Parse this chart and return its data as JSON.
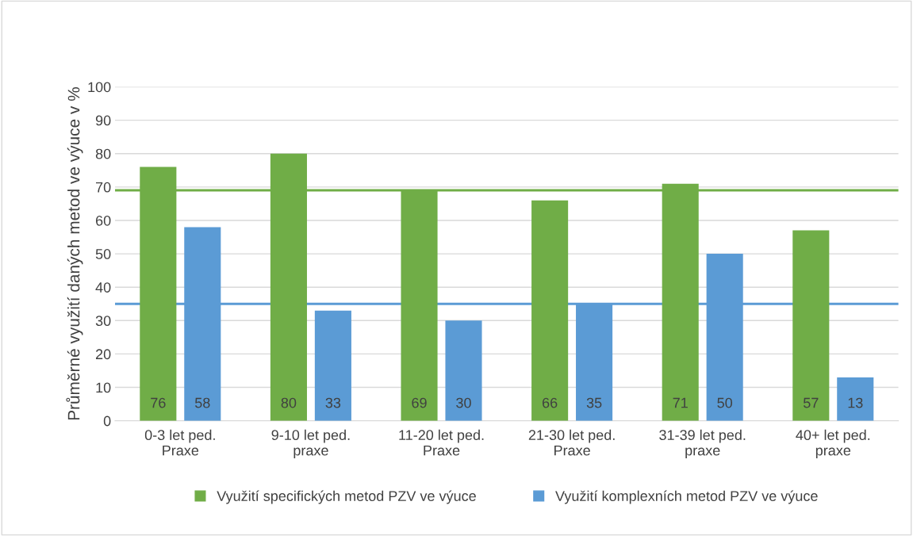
{
  "chart_data": {
    "type": "bar",
    "ylabel": "Průměrné využití daných metod ve výuce v %",
    "categories": [
      "0-3 let ped.\nPraxe",
      "9-10 let ped.\npraxe",
      "11-20 let ped.\nPraxe",
      "21-30 let ped.\nPraxe",
      "31-39 let ped.\npraxe",
      "40+ let ped.\npraxe"
    ],
    "series": [
      {
        "name": "Využití specifických metod PZV ve výuce",
        "color": "#70ad47",
        "values": [
          76,
          80,
          69,
          66,
          71,
          57
        ]
      },
      {
        "name": "Využití komplexních metod PZV ve výuce",
        "color": "#5b9bd5",
        "values": [
          58,
          33,
          30,
          35,
          50,
          13
        ]
      }
    ],
    "ylim": [
      0,
      100
    ],
    "yticks": [
      0,
      10,
      20,
      30,
      40,
      50,
      60,
      70,
      80,
      90,
      100
    ],
    "grid": "y",
    "legend": "bottom",
    "data_labels": true,
    "ref_lines": [
      {
        "axis": "y",
        "value": 69,
        "color": "#70ad47"
      },
      {
        "axis": "y",
        "value": 35,
        "color": "#5b9bd5"
      }
    ]
  }
}
